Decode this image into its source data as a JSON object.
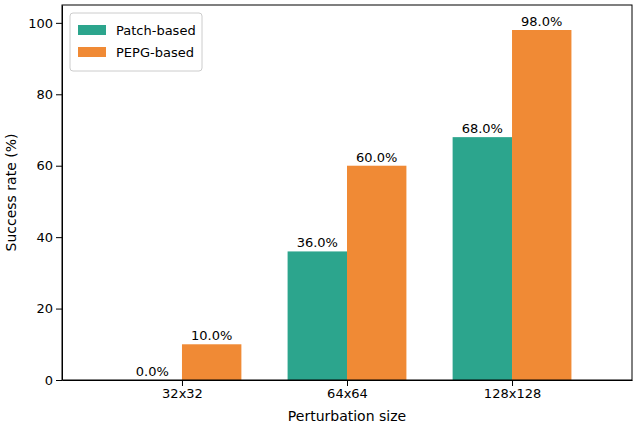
{
  "chart_data": {
    "type": "bar",
    "x_label": "Perturbation size",
    "y_label": "Success rate (%)",
    "categories": [
      "32x32",
      "64x64",
      "128x128"
    ],
    "series": [
      {
        "name": "Patch-based",
        "color": "#2ca58d",
        "values": [
          0,
          36,
          68
        ],
        "value_labels": [
          "0.0%",
          "36.0%",
          "68.0%"
        ]
      },
      {
        "name": "PEPG-based",
        "color": "#f08a35",
        "values": [
          10,
          60,
          98
        ],
        "value_labels": [
          "10.0%",
          "60.0%",
          "98.0%"
        ]
      }
    ],
    "ylim": [
      0,
      105
    ],
    "yticks": [
      0,
      20,
      40,
      60,
      80,
      100
    ],
    "grid": false,
    "legend": "upper left",
    "data_labels": true
  }
}
